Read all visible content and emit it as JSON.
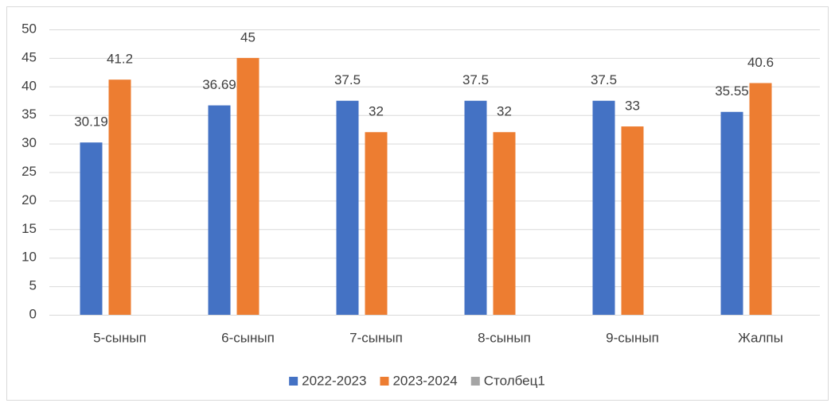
{
  "chart_data": {
    "type": "bar",
    "categories": [
      "5-сынып",
      "6-сынып",
      "7-сынып",
      "8-сынып",
      "9-сынып",
      "Жалпы"
    ],
    "series": [
      {
        "name": "2022-2023",
        "color": "#4472c4",
        "values": [
          30.19,
          36.69,
          37.5,
          37.5,
          37.5,
          35.55
        ]
      },
      {
        "name": "2023-2024",
        "color": "#ed7d31",
        "values": [
          41.2,
          45,
          32,
          32,
          33,
          40.6
        ]
      },
      {
        "name": "Столбец1",
        "color": "#a5a5a5",
        "values": [
          null,
          null,
          null,
          null,
          null,
          null
        ]
      }
    ],
    "ylim": [
      0,
      50
    ],
    "yticks": [
      0,
      5,
      10,
      15,
      20,
      25,
      30,
      35,
      40,
      45,
      50
    ],
    "grid": true,
    "legend": "bottom",
    "data_labels": true
  }
}
